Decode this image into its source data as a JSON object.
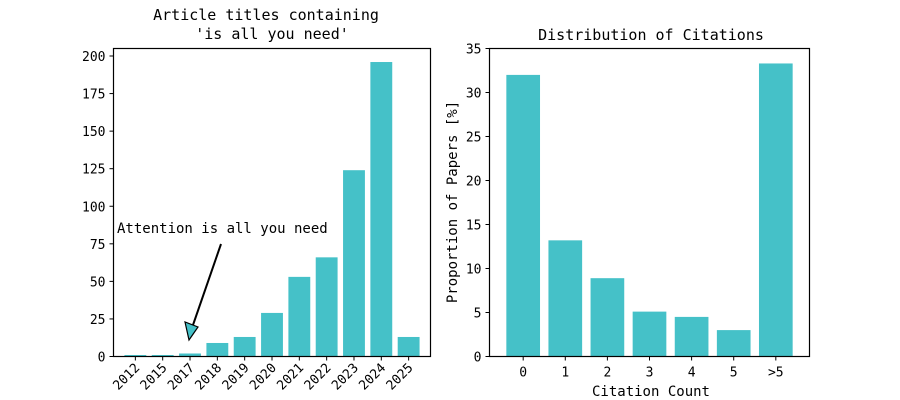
{
  "chart_data": [
    {
      "type": "bar",
      "title": "Article titles containing\n'is all you need'",
      "title_lines": [
        "Article titles containing",
        "'is all you need'"
      ],
      "xlabel": "",
      "ylabel": "",
      "categories": [
        "2012",
        "2015",
        "2017",
        "2018",
        "2019",
        "2020",
        "2021",
        "2022",
        "2023",
        "2024",
        "2025"
      ],
      "values": [
        1,
        1,
        2,
        9,
        13,
        29,
        53,
        66,
        124,
        196,
        13
      ],
      "ylim": [
        0,
        205
      ],
      "yticks": [
        0,
        25,
        50,
        75,
        100,
        125,
        150,
        175,
        200
      ],
      "ytick_labels": [
        "0",
        "25",
        "50",
        "75",
        "100",
        "125",
        "150",
        "175",
        "200"
      ],
      "xtick_rotation": 45,
      "grid": false,
      "color": "#45c1c8",
      "annotation": {
        "text": "Attention is all you need",
        "target_category": "2017",
        "target_value": 10,
        "text_value": 85
      }
    },
    {
      "type": "bar",
      "title": "Distribution of Citations",
      "xlabel": "Citation Count",
      "ylabel": "Proportion of Papers [%]",
      "categories": [
        "0",
        "1",
        "2",
        "3",
        "4",
        "5",
        ">5"
      ],
      "values": [
        32.0,
        13.2,
        8.9,
        5.1,
        4.5,
        3.0,
        33.3
      ],
      "ylim": [
        0,
        35
      ],
      "yticks": [
        0,
        5,
        10,
        15,
        20,
        25,
        30,
        35
      ],
      "ytick_labels": [
        "0",
        "5",
        "10",
        "15",
        "20",
        "25",
        "30",
        "35"
      ],
      "grid": false,
      "color": "#45c1c8"
    }
  ]
}
